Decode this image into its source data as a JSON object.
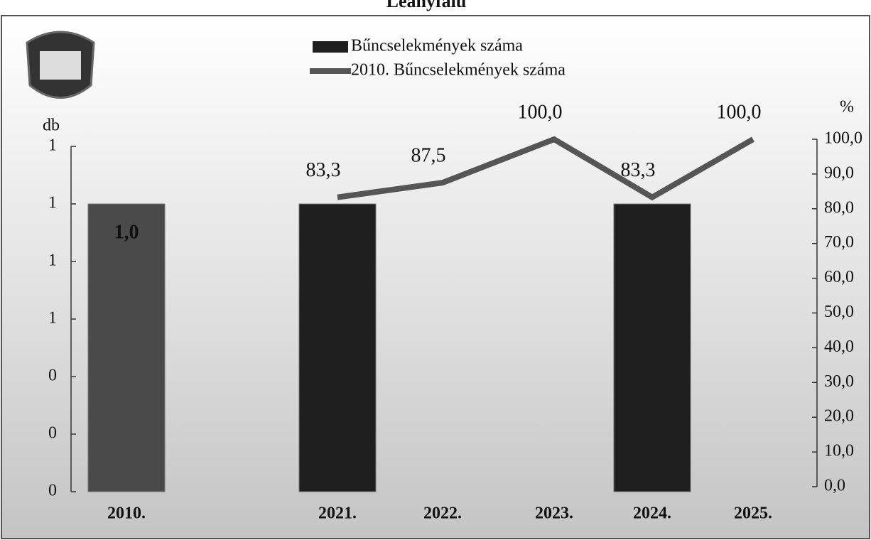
{
  "chart_data": {
    "type": "bar-line",
    "title": "Leányfalu",
    "y_label": "db",
    "y2_label": "%",
    "categories": [
      "2010.",
      "2021.",
      "2022.",
      "2023.",
      "2024.",
      "2025."
    ],
    "series": [
      {
        "name": "Bűncselekmények száma",
        "type": "bar",
        "color": "#1e1e1e",
        "values": [
          1,
          1,
          null,
          null,
          1,
          null
        ],
        "value_labels": [
          "1,0",
          null,
          null,
          null,
          null,
          null
        ]
      },
      {
        "name": "2010. Bűncselekmények száma",
        "type": "line",
        "axis": "y2",
        "color": "#555555",
        "values": [
          null,
          83.3,
          87.5,
          100.0,
          83.3,
          100.0
        ],
        "value_labels": [
          null,
          "83,3",
          "87,5",
          "100,0",
          "83,3",
          "100,0"
        ]
      }
    ],
    "ylim": [
      0,
      1.2
    ],
    "yticks": [
      0,
      {
        "value": 0.2,
        "label": "0"
      },
      {
        "value": 0.4,
        "label": "0"
      },
      {
        "value": 0.6,
        "label": "1"
      },
      {
        "value": 0.8,
        "label": "1"
      },
      {
        "value": 1.0,
        "label": "1"
      },
      {
        "value": 1.2,
        "label": "1"
      }
    ],
    "y2lim": [
      0,
      100
    ],
    "y2ticks": [
      {
        "value": 0,
        "label": "0,0"
      },
      {
        "value": 10,
        "label": "10,0"
      },
      {
        "value": 20,
        "label": "20,0"
      },
      {
        "value": 30,
        "label": "30,0"
      },
      {
        "value": 40,
        "label": "40,0"
      },
      {
        "value": 50,
        "label": "50,0"
      },
      {
        "value": 60,
        "label": "60,0"
      },
      {
        "value": 70,
        "label": "70,0"
      },
      {
        "value": 80,
        "label": "80,0"
      },
      {
        "value": 90,
        "label": "90,0"
      },
      {
        "value": 100,
        "label": "100,0"
      }
    ]
  }
}
